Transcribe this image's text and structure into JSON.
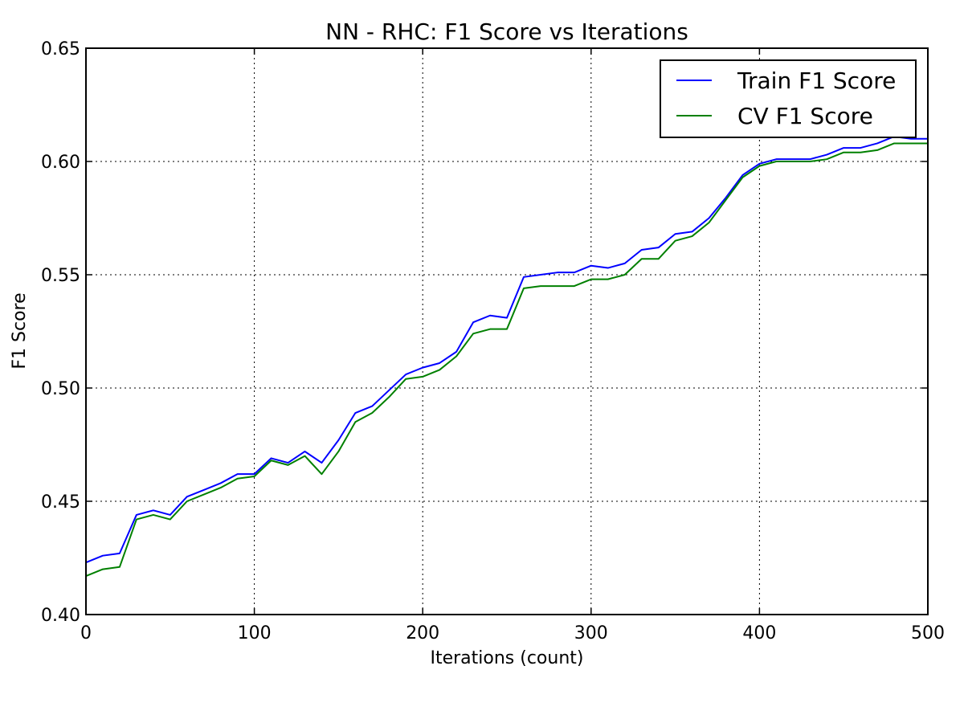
{
  "chart_data": {
    "type": "line",
    "title": "NN - RHC: F1 Score vs Iterations",
    "xlabel": "Iterations (count)",
    "ylabel": "F1 Score",
    "xlim": [
      0,
      500
    ],
    "ylim": [
      0.4,
      0.65
    ],
    "xticks": [
      "0",
      "100",
      "200",
      "300",
      "400",
      "500"
    ],
    "yticks": [
      "0.40",
      "0.45",
      "0.50",
      "0.55",
      "0.60",
      "0.65"
    ],
    "grid": true,
    "legend_position": "top-right",
    "x": [
      0,
      10,
      20,
      30,
      40,
      50,
      60,
      70,
      80,
      90,
      100,
      110,
      120,
      130,
      140,
      150,
      160,
      170,
      180,
      190,
      200,
      210,
      220,
      230,
      240,
      250,
      260,
      270,
      280,
      290,
      300,
      310,
      320,
      330,
      340,
      350,
      360,
      370,
      380,
      390,
      400,
      410,
      420,
      430,
      440,
      450,
      460,
      470,
      480,
      490,
      500
    ],
    "series": [
      {
        "name": "Train F1 Score",
        "color": "#0000ff",
        "values": [
          0.423,
          0.426,
          0.427,
          0.444,
          0.446,
          0.444,
          0.452,
          0.455,
          0.458,
          0.462,
          0.462,
          0.469,
          0.467,
          0.472,
          0.467,
          0.477,
          0.489,
          0.492,
          0.499,
          0.506,
          0.509,
          0.511,
          0.516,
          0.529,
          0.532,
          0.531,
          0.549,
          0.55,
          0.551,
          0.551,
          0.554,
          0.553,
          0.555,
          0.561,
          0.562,
          0.568,
          0.569,
          0.575,
          0.584,
          0.594,
          0.599,
          0.601,
          0.601,
          0.601,
          0.603,
          0.606,
          0.606,
          0.608,
          0.611,
          0.61,
          0.61
        ]
      },
      {
        "name": "CV F1 Score",
        "color": "#008000",
        "values": [
          0.417,
          0.42,
          0.421,
          0.442,
          0.444,
          0.442,
          0.45,
          0.453,
          0.456,
          0.46,
          0.461,
          0.468,
          0.466,
          0.47,
          0.462,
          0.472,
          0.485,
          0.489,
          0.496,
          0.504,
          0.505,
          0.508,
          0.514,
          0.524,
          0.526,
          0.526,
          0.544,
          0.545,
          0.545,
          0.545,
          0.548,
          0.548,
          0.55,
          0.557,
          0.557,
          0.565,
          0.567,
          0.573,
          0.583,
          0.593,
          0.598,
          0.6,
          0.6,
          0.6,
          0.601,
          0.604,
          0.604,
          0.605,
          0.608,
          0.608,
          0.608
        ]
      }
    ]
  }
}
